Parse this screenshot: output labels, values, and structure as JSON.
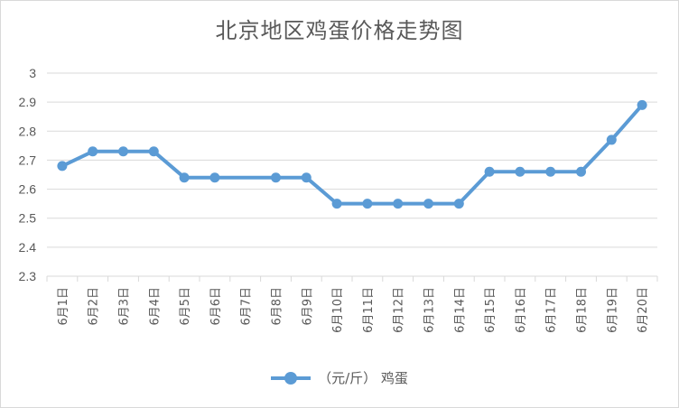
{
  "chart_data": {
    "type": "line",
    "title": "北京地区鸡蛋价格走势图",
    "categories": [
      "6月1日",
      "6月2日",
      "6月3日",
      "6月4日",
      "6月5日",
      "6月6日",
      "6月7日",
      "6月8日",
      "6月9日",
      "6月10日",
      "6月11日",
      "6月12日",
      "6月13日",
      "6月14日",
      "6月15日",
      "6月16日",
      "6月17日",
      "6月18日",
      "6月19日",
      "6月20日"
    ],
    "series": [
      {
        "name": "（元/斤） 鸡蛋",
        "color": "#5b9bd5",
        "values": [
          2.68,
          2.73,
          2.73,
          2.73,
          2.64,
          2.64,
          null,
          2.64,
          2.64,
          2.55,
          2.55,
          2.55,
          2.55,
          2.55,
          2.66,
          2.66,
          2.66,
          2.66,
          2.77,
          2.89
        ]
      }
    ],
    "y_ticks": [
      "3",
      "2.9",
      "2.8",
      "2.7",
      "2.6",
      "2.5",
      "2.4",
      "2.3"
    ],
    "ylim": [
      2.3,
      3.0
    ],
    "grid": true,
    "legend_position": "bottom",
    "gridline_color": "#d9d9d9",
    "axis_text_color": "#595959"
  }
}
